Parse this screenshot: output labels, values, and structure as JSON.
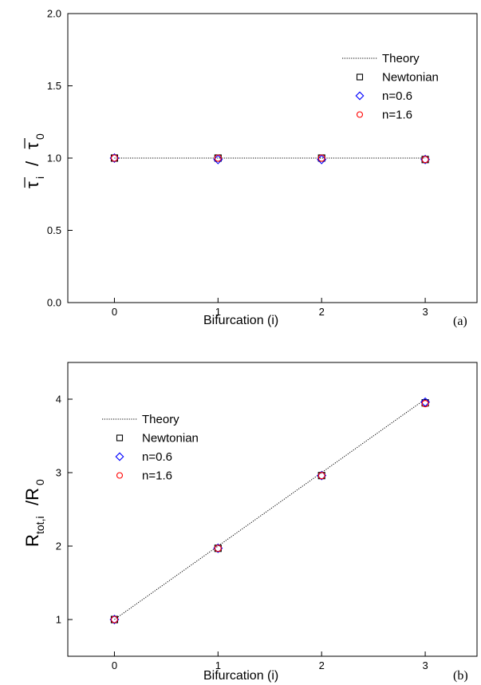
{
  "colors": {
    "theory": "#000000",
    "newtonian": "#000000",
    "n06": "#0000ff",
    "n16": "#ff0000"
  },
  "chart_data": [
    {
      "type": "scatter",
      "panel_label": "(b)",
      "xlabel": "Bifurcation (i)",
      "ylabel_main": "R",
      "ylabel_sub": "tot,i",
      "ylabel_tail": "/R",
      "ylabel_sub2": "0",
      "xlim": [
        -0.45,
        3.5
      ],
      "ylim": [
        0.5,
        4.5
      ],
      "xticks": [
        0,
        1,
        2,
        3
      ],
      "xtick_labels": [
        "0",
        "1",
        "2",
        "3"
      ],
      "yticks": [
        1,
        2,
        3,
        4
      ],
      "ytick_labels": [
        "1",
        "2",
        "3",
        "4"
      ],
      "legend_position": "top-left",
      "series": [
        {
          "name": "Theory",
          "style": "dotted-line",
          "x": [
            0,
            1,
            2,
            3
          ],
          "y": [
            1.0,
            2.0,
            3.0,
            4.0
          ]
        },
        {
          "name": "Newtonian",
          "style": "square",
          "x": [
            0,
            1,
            2,
            3
          ],
          "y": [
            1.0,
            1.97,
            2.96,
            3.95
          ]
        },
        {
          "name": "n=0.6",
          "style": "diamond",
          "x": [
            0,
            1,
            2,
            3
          ],
          "y": [
            1.0,
            1.97,
            2.96,
            3.96
          ]
        },
        {
          "name": "n=1.6",
          "style": "circle",
          "x": [
            0,
            1,
            2,
            3
          ],
          "y": [
            1.0,
            1.97,
            2.96,
            3.94
          ]
        }
      ]
    }
  ],
  "top_panel": {
    "type": "scatter",
    "panel_label": "(a)",
    "xlabel": "Bifurcation (i)",
    "ylabel_a": "τ",
    "ylabel_sub_a": "i",
    "ylabel_sep": "/",
    "ylabel_b": "τ",
    "ylabel_sub_b": "0",
    "xlim": [
      -0.45,
      3.5
    ],
    "ylim": [
      0.0,
      2.0
    ],
    "xticks": [
      0,
      1,
      2,
      3
    ],
    "xtick_labels": [
      "0",
      "1",
      "2",
      "3"
    ],
    "yticks": [
      0.0,
      0.5,
      1.0,
      1.5,
      2.0
    ],
    "ytick_labels": [
      "0.0",
      "0.5",
      "1.0",
      "1.5",
      "2.0"
    ],
    "legend_position": "top-right",
    "series": [
      {
        "name": "Theory",
        "style": "dotted-line",
        "x": [
          0,
          1,
          2,
          3
        ],
        "y": [
          1.0,
          1.0,
          1.0,
          1.0
        ]
      },
      {
        "name": "Newtonian",
        "style": "square",
        "x": [
          0,
          1,
          2,
          3
        ],
        "y": [
          1.0,
          1.0,
          1.0,
          0.99
        ]
      },
      {
        "name": "n=0.6",
        "style": "diamond",
        "x": [
          0,
          1,
          2,
          3
        ],
        "y": [
          1.0,
          0.99,
          0.99,
          0.99
        ]
      },
      {
        "name": "n=1.6",
        "style": "circle",
        "x": [
          0,
          1,
          2,
          3
        ],
        "y": [
          1.0,
          1.0,
          1.0,
          0.99
        ]
      }
    ]
  }
}
